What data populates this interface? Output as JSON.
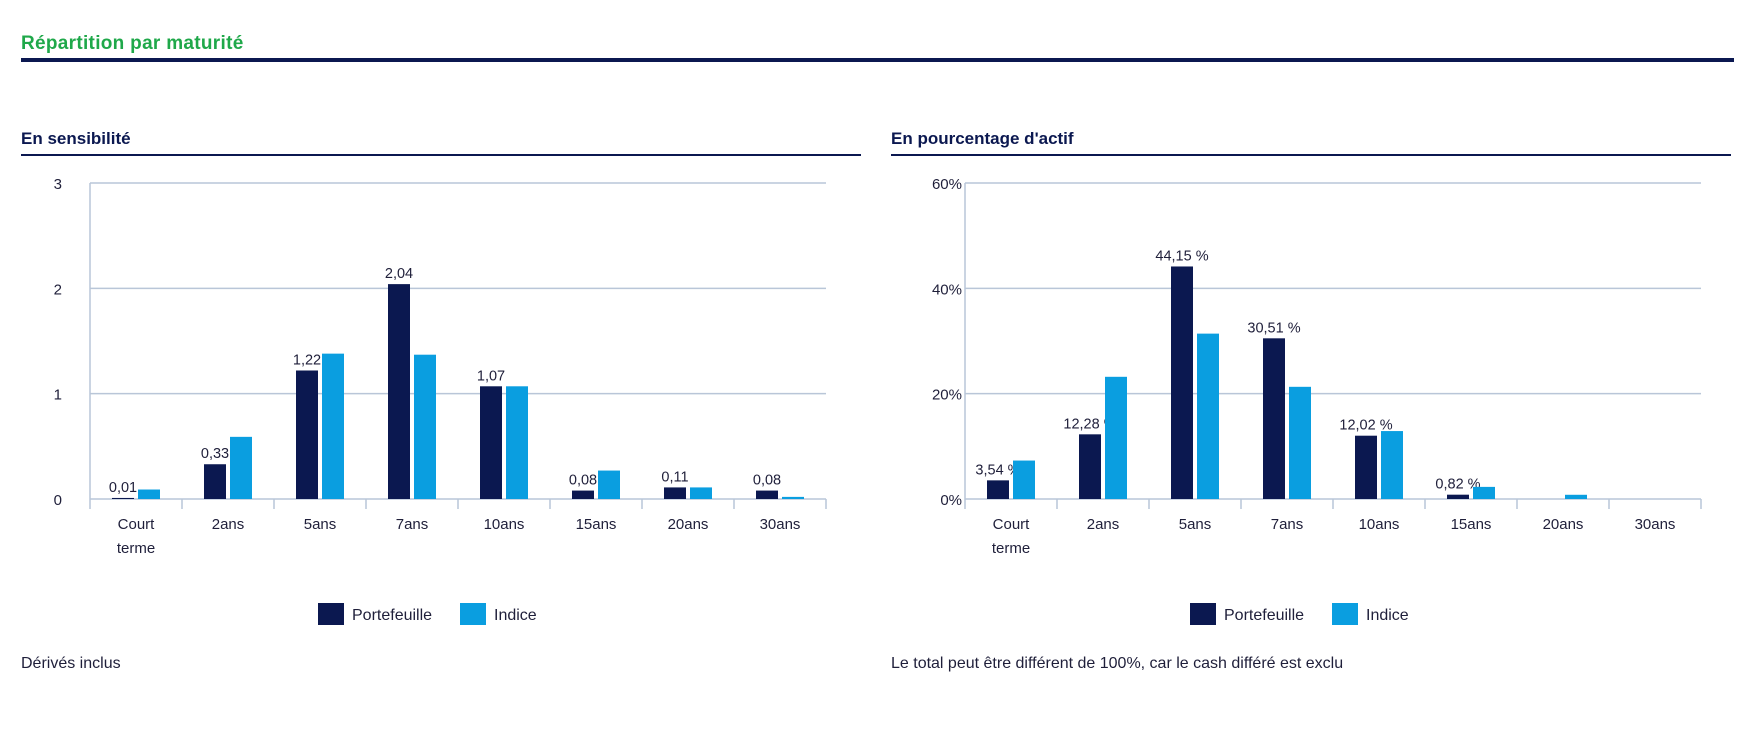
{
  "page": {
    "title": "Répartition par maturité"
  },
  "colors": {
    "portefeuille": "#0b1850",
    "indice": "#0a9ee0",
    "grid": "#b9c6d8",
    "text": "#1f1f3a"
  },
  "chart_data": [
    {
      "type": "bar",
      "title": "En sensibilité",
      "categories": [
        "Court terme",
        "2ans",
        "5ans",
        "7ans",
        "10ans",
        "15ans",
        "20ans",
        "30ans"
      ],
      "series": [
        {
          "name": "Portefeuille",
          "values": [
            0.01,
            0.33,
            1.22,
            2.04,
            1.07,
            0.08,
            0.11,
            0.08
          ],
          "labels": [
            "0,01",
            "0,33",
            "1,22",
            "2,04",
            "1,07",
            "0,08",
            "0,11",
            "0,08"
          ]
        },
        {
          "name": "Indice",
          "values": [
            0.09,
            0.59,
            1.38,
            1.37,
            1.07,
            0.27,
            0.11,
            0.02
          ]
        }
      ],
      "yticks": [
        0,
        1,
        2,
        3
      ],
      "ytick_labels": [
        "0",
        "1",
        "2",
        "3"
      ],
      "ylim": [
        0,
        3
      ],
      "grid": true,
      "legend": "bottom-center",
      "note": "Dérivés inclus"
    },
    {
      "type": "bar",
      "title": "En pourcentage d'actif",
      "categories": [
        "Court terme",
        "2ans",
        "5ans",
        "7ans",
        "10ans",
        "15ans",
        "20ans",
        "30ans"
      ],
      "series": [
        {
          "name": "Portefeuille",
          "values": [
            3.54,
            12.28,
            44.15,
            30.51,
            12.02,
            0.82,
            0,
            0
          ],
          "labels": [
            "3,54 %",
            "12,28 %",
            "44,15 %",
            "30,51 %",
            "12,02 %",
            "0,82 %",
            "",
            ""
          ]
        },
        {
          "name": "Indice",
          "values": [
            7.3,
            23.2,
            31.4,
            21.3,
            12.9,
            2.3,
            0.8,
            0
          ]
        }
      ],
      "yticks": [
        0,
        20,
        40,
        60
      ],
      "ytick_labels": [
        "0%",
        "20%",
        "40%",
        "60%"
      ],
      "ylim": [
        0,
        60
      ],
      "grid": true,
      "legend": "bottom-center",
      "note": "Le total peut être différent de 100%, car le cash différé est exclu"
    }
  ]
}
